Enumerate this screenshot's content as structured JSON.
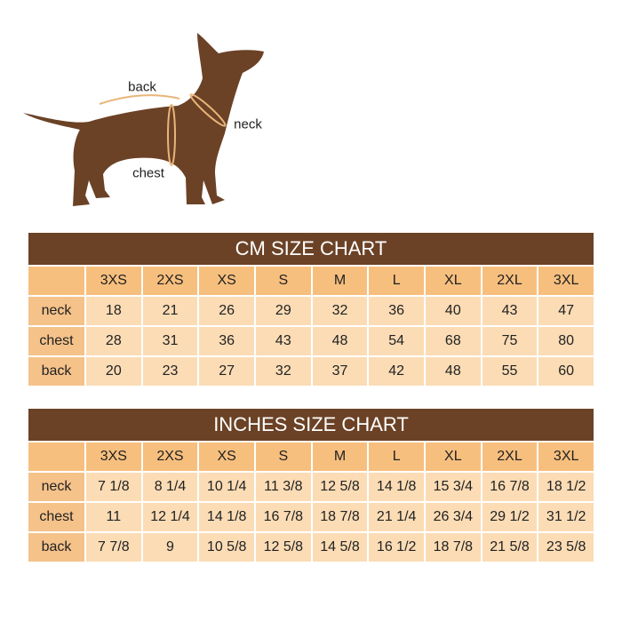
{
  "diagram": {
    "labels": {
      "back": "back",
      "neck": "neck",
      "chest": "chest"
    },
    "colors": {
      "dog": "#6b4226",
      "measure_line": "#e9b57a"
    }
  },
  "tables": [
    {
      "title": "CM SIZE CHART",
      "sizes": [
        "3XS",
        "2XS",
        "XS",
        "S",
        "M",
        "L",
        "XL",
        "2XL",
        "3XL"
      ],
      "rows": [
        {
          "label": "neck",
          "values": [
            "18",
            "21",
            "26",
            "29",
            "32",
            "36",
            "40",
            "43",
            "47"
          ]
        },
        {
          "label": "chest",
          "values": [
            "28",
            "31",
            "36",
            "43",
            "48",
            "54",
            "68",
            "75",
            "80"
          ]
        },
        {
          "label": "back",
          "values": [
            "20",
            "23",
            "27",
            "32",
            "37",
            "42",
            "48",
            "55",
            "60"
          ]
        }
      ]
    },
    {
      "title": "INCHES SIZE CHART",
      "sizes": [
        "3XS",
        "2XS",
        "XS",
        "S",
        "M",
        "L",
        "XL",
        "2XL",
        "3XL"
      ],
      "rows": [
        {
          "label": "neck",
          "values": [
            "7 1/8",
            "8 1/4",
            "10 1/4",
            "11 3/8",
            "12 5/8",
            "14 1/8",
            "15 3/4",
            "16 7/8",
            "18 1/2"
          ]
        },
        {
          "label": "chest",
          "values": [
            "11",
            "12 1/4",
            "14 1/8",
            "16 7/8",
            "18 7/8",
            "21 1/4",
            "26 3/4",
            "29 1/2",
            "31 1/2"
          ]
        },
        {
          "label": "back",
          "values": [
            "7 7/8",
            "9",
            "10 5/8",
            "12 5/8",
            "14 5/8",
            "16 1/2",
            "18 7/8",
            "21 5/8",
            "23 5/8"
          ]
        }
      ]
    }
  ],
  "colors": {
    "title_bar": "#6b4226",
    "header": "#f7bf7e",
    "row_label": "#f5c28a",
    "cell": "#fbdcb5"
  }
}
